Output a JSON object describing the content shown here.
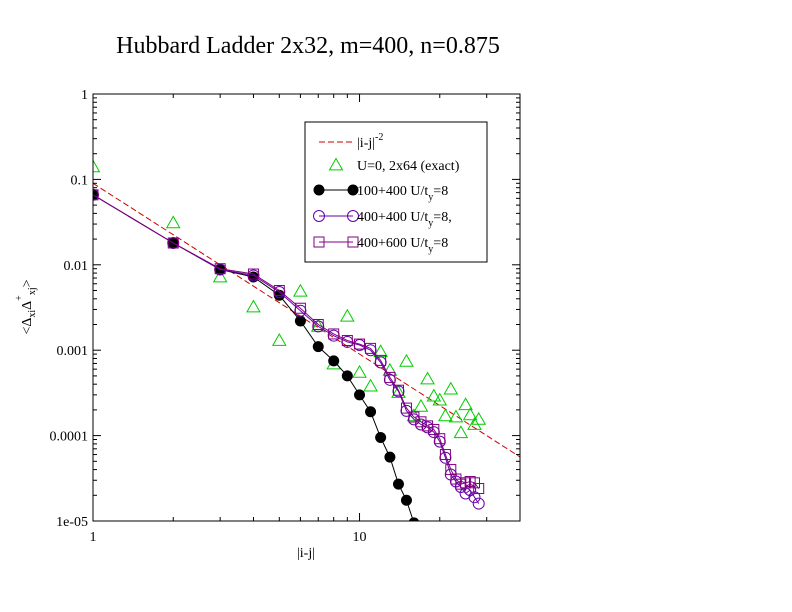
{
  "chart_data": {
    "type": "scatter",
    "title": "Hubbard Ladder 2x32, m=400, n=0.875",
    "xlabel": "|i-j|",
    "ylabel": "<ΔxiΔ+xj>",
    "xscale": "log",
    "yscale": "log",
    "xlim": [
      1,
      40
    ],
    "ylim": [
      1e-05,
      1
    ],
    "x_ticks": [
      1,
      10
    ],
    "x_tick_labels": [
      "1",
      "10"
    ],
    "y_ticks": [
      1,
      0.1,
      0.01,
      0.001,
      0.0001,
      1e-05
    ],
    "y_tick_labels": [
      "1",
      "0.1",
      "0.01",
      "0.001",
      "0.0001",
      "1e-05"
    ],
    "grid": false,
    "legend_position": "top-right",
    "series": [
      {
        "name": "|i-j|-2",
        "label_main": "|i-j|",
        "label_sup": "-2",
        "style": "dashed-line",
        "color": "#cc0000",
        "x": [
          1,
          40
        ],
        "y": [
          0.09,
          5.625e-05
        ]
      },
      {
        "name": "U=0, 2x64 (exact)",
        "label_main": "U=0, 2x64 (exact)",
        "style": "triangle-markers",
        "color": "#00cc00",
        "x": [
          1,
          2,
          3,
          4,
          5,
          6,
          7,
          8,
          9,
          10,
          11,
          12,
          13,
          14,
          15,
          16,
          17,
          18,
          19,
          20,
          21,
          22,
          23,
          24,
          25,
          26,
          27,
          28
        ],
        "y": [
          0.14,
          0.031,
          0.0072,
          0.0032,
          0.0013,
          0.0049,
          0.0019,
          0.00069,
          0.0025,
          0.00055,
          0.00038,
          0.00096,
          0.00058,
          0.00032,
          0.00074,
          0.00017,
          0.00022,
          0.00046,
          0.00029,
          0.00026,
          0.00017,
          0.00035,
          0.000165,
          0.000108,
          0.00023,
          0.000175,
          0.000135,
          0.000155
        ]
      },
      {
        "name": "100+400 U/ty=8",
        "label_main": "100+400 U/t",
        "label_sub": "y",
        "label_tail": "=8",
        "style": "line-filled-circles",
        "color": "#000000",
        "x": [
          1,
          2,
          3,
          4,
          5,
          6,
          7,
          8,
          9,
          10,
          11,
          12,
          13,
          14,
          15,
          16
        ],
        "y": [
          0.066,
          0.018,
          0.0088,
          0.0072,
          0.0044,
          0.0022,
          0.0011,
          0.00075,
          0.0005,
          0.0003,
          0.00019,
          9.5e-05,
          5.6e-05,
          2.7e-05,
          1.75e-05,
          9.5e-06
        ]
      },
      {
        "name": "400+400 U/ty=8,",
        "label_main": "400+400 U/t",
        "label_sub": "y",
        "label_tail": "=8,",
        "style": "line-open-circles",
        "color": "#6600aa",
        "x": [
          1,
          2,
          3,
          4,
          5,
          6,
          7,
          8,
          9,
          10,
          11,
          12,
          13,
          14,
          15,
          16,
          17,
          18,
          19,
          20,
          21,
          22,
          23,
          24,
          25,
          26,
          27,
          28
        ],
        "y": [
          0.066,
          0.018,
          0.0088,
          0.0075,
          0.0048,
          0.0029,
          0.0019,
          0.00148,
          0.00125,
          0.00115,
          0.001,
          0.00072,
          0.00045,
          0.00033,
          0.000195,
          0.000155,
          0.000135,
          0.000125,
          0.00011,
          8.5e-05,
          5.5e-05,
          3.5e-05,
          2.9e-05,
          2.5e-05,
          2.1e-05,
          2.3e-05,
          1.9e-05,
          1.6e-05
        ]
      },
      {
        "name": "400+600 U/ty=8",
        "label_main": "400+600 U/t",
        "label_sub": "y",
        "label_tail": "=8",
        "style": "line-open-squares",
        "color": "#800080",
        "x": [
          1,
          2,
          3,
          4,
          5,
          6,
          7,
          8,
          9,
          10,
          11,
          12,
          13,
          14,
          15,
          16,
          17,
          18,
          19,
          20,
          21,
          22,
          23,
          24,
          25,
          26,
          27,
          28
        ],
        "y": [
          0.066,
          0.018,
          0.009,
          0.0078,
          0.005,
          0.0031,
          0.002,
          0.00155,
          0.0013,
          0.00118,
          0.00105,
          0.00076,
          0.00048,
          0.00034,
          0.00021,
          0.000165,
          0.000145,
          0.00013,
          0.000118,
          9.2e-05,
          6e-05,
          4e-05,
          3.1e-05,
          2.7e-05,
          2.8e-05,
          2.9e-05,
          2.8e-05,
          2.4e-05
        ]
      }
    ]
  }
}
